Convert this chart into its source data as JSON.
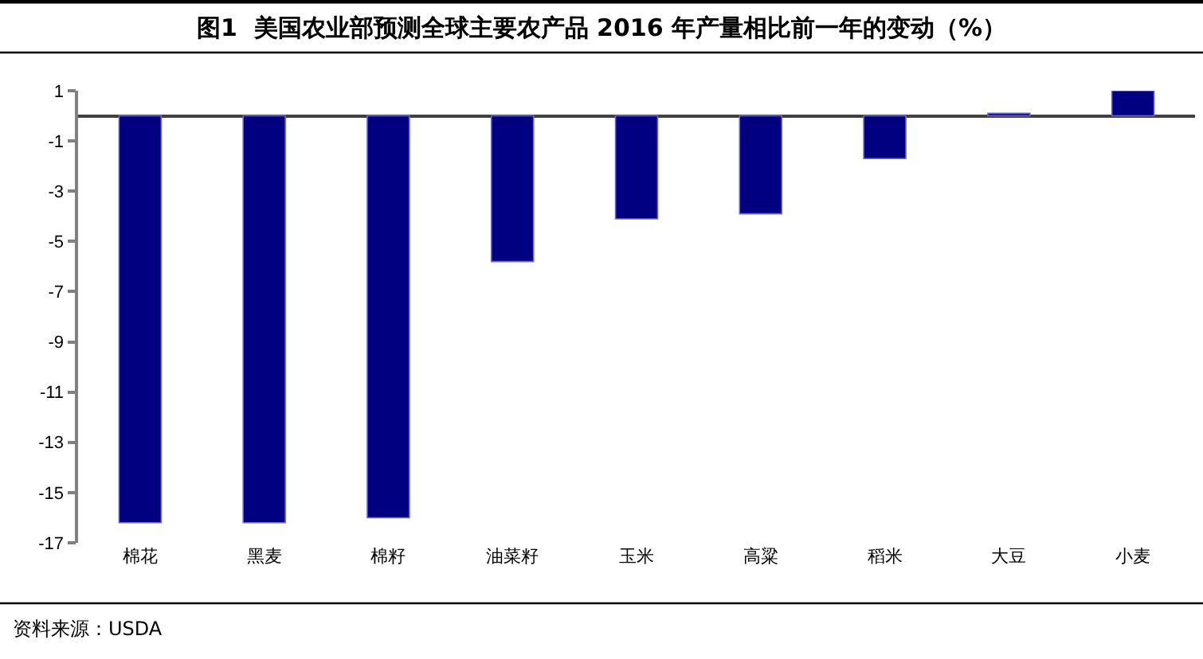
{
  "chart_data": {
    "type": "bar",
    "title": "图1  美国农业部预测全球主要农产品 2016 年产量相比前一年的变动（%）",
    "categories": [
      "棉花",
      "黑麦",
      "棉籽",
      "油菜籽",
      "玉米",
      "高粱",
      "稻米",
      "大豆",
      "小麦"
    ],
    "values": [
      -16.2,
      -16.2,
      -16.0,
      -5.8,
      -4.1,
      -3.9,
      -1.7,
      0.1,
      1.0
    ],
    "color": "#000080",
    "ylim": [
      -17,
      1
    ],
    "yticks": [
      1,
      -1,
      -3,
      -5,
      -7,
      -9,
      -11,
      -13,
      -15,
      -17
    ],
    "annotations": [
      "资料来源：USDA"
    ]
  }
}
